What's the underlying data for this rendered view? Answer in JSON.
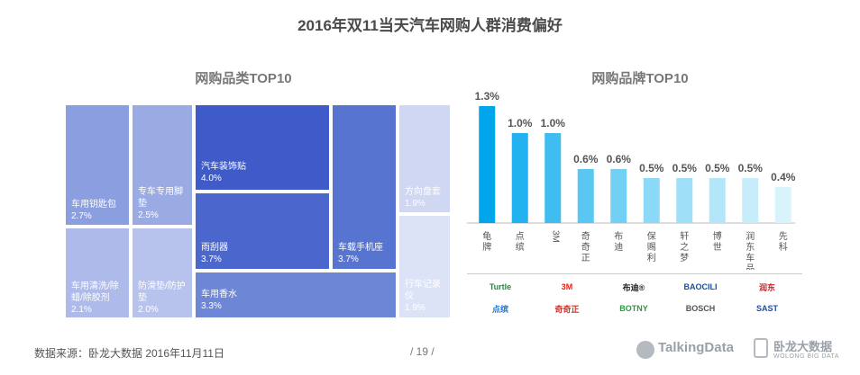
{
  "title": "2016年双11当天汽车网购人群消费偏好",
  "treemap_title": "网购品类TOP10",
  "bar_title": "网购品牌TOP10",
  "chart_data": [
    {
      "type": "treemap",
      "title": "网购品类TOP10",
      "items": [
        {
          "label": "汽车装饰贴",
          "value": 4.0,
          "value_label": "4.0%",
          "color": "#3f5bc9"
        },
        {
          "label": "雨刮器",
          "value": 3.7,
          "value_label": "3.7%",
          "color": "#4b67cd"
        },
        {
          "label": "车载手机座",
          "value": 3.7,
          "value_label": "3.7%",
          "color": "#5874d1"
        },
        {
          "label": "车用香水",
          "value": 3.3,
          "value_label": "3.3%",
          "color": "#6e86d6"
        },
        {
          "label": "车用钥匙包",
          "value": 2.7,
          "value_label": "2.7%",
          "color": "#8b9ee0"
        },
        {
          "label": "专车专用脚垫",
          "value": 2.5,
          "value_label": "2.5%",
          "color": "#9aabe4"
        },
        {
          "label": "车用清洗/除蜡/除胶剂",
          "value": 2.1,
          "value_label": "2.1%",
          "color": "#aebbea"
        },
        {
          "label": "防滑垫/防护垫",
          "value": 2.0,
          "value_label": "2.0%",
          "color": "#b7c3ec"
        },
        {
          "label": "方向盘套",
          "value": 1.9,
          "value_label": "1.9%",
          "color": "#cfd7f3"
        },
        {
          "label": "行车记录仪",
          "value": 1.9,
          "value_label": "1.9%",
          "color": "#dde3f6"
        }
      ]
    },
    {
      "type": "bar",
      "title": "网购品牌TOP10",
      "categories": [
        "龟牌",
        "点缤",
        "3M",
        "奇奇正",
        "布迪",
        "保赐利",
        "轩之梦",
        "博世",
        "润东车品",
        "先科"
      ],
      "values": [
        1.3,
        1.0,
        1.0,
        0.6,
        0.6,
        0.5,
        0.5,
        0.5,
        0.5,
        0.4
      ],
      "value_labels": [
        "1.3%",
        "1.0%",
        "1.0%",
        "0.6%",
        "0.6%",
        "0.5%",
        "0.5%",
        "0.5%",
        "0.5%",
        "0.4%"
      ],
      "colors": [
        "#00a6ec",
        "#22b2ef",
        "#3fbdf1",
        "#5ac7f3",
        "#72d0f5",
        "#8bd8f7",
        "#a0dff8",
        "#b4e6fa",
        "#c7edfb",
        "#d9f3fc"
      ],
      "ylim": [
        0,
        1.5
      ]
    }
  ],
  "logos": [
    {
      "text": "Turtle",
      "color": "#1a8f3a"
    },
    {
      "text": "3M",
      "color": "#e5221d"
    },
    {
      "text": "布迪®",
      "color": "#222222"
    },
    {
      "text": "BAOCILI",
      "color": "#1a4f9c"
    },
    {
      "text": "润东",
      "color": "#c8262a"
    },
    {
      "text": "点缤",
      "color": "#2a7bd1"
    },
    {
      "text": "奇奇正",
      "color": "#d0332b"
    },
    {
      "text": "BOTNY",
      "color": "#2a9a3f"
    },
    {
      "text": "BOSCH",
      "color": "#555555"
    },
    {
      "text": "SAST",
      "color": "#1f4ea0"
    }
  ],
  "footer": {
    "source": "数据来源：卧龙大数据  2016年11月11日",
    "page": "/  19  /",
    "brand1": "TalkingData",
    "brand2": "卧龙大数据",
    "brand2_sub": "WOLONG BIG DATA"
  }
}
